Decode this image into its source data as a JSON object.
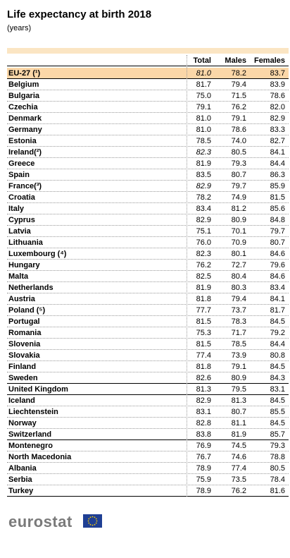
{
  "header": {
    "title": "Life expectancy at birth 2018",
    "subtitle": "(years)"
  },
  "table": {
    "columns": [
      "Total",
      "Males",
      "Females"
    ],
    "highlight": {
      "label": "EU-27 (¹)",
      "cells": [
        "81.0",
        "78.2",
        "83.7"
      ],
      "total_italic": true
    },
    "groups": [
      {
        "rows": [
          {
            "label": "Belgium",
            "cells": [
              "81.7",
              "79.4",
              "83.9"
            ]
          },
          {
            "label": "Bulgaria",
            "cells": [
              "75.0",
              "71.5",
              "78.6"
            ]
          },
          {
            "label": "Czechia",
            "cells": [
              "79.1",
              "76.2",
              "82.0"
            ]
          },
          {
            "label": "Denmark",
            "cells": [
              "81.0",
              "79.1",
              "82.9"
            ]
          },
          {
            "label": "Germany",
            "cells": [
              "81.0",
              "78.6",
              "83.3"
            ]
          },
          {
            "label": "Estonia",
            "cells": [
              "78.5",
              "74.0",
              "82.7"
            ]
          },
          {
            "label": "Ireland(²)",
            "cells": [
              "82.3",
              "80.5",
              "84.1"
            ],
            "total_italic": true
          },
          {
            "label": "Greece",
            "cells": [
              "81.9",
              "79.3",
              "84.4"
            ]
          },
          {
            "label": "Spain",
            "cells": [
              "83.5",
              "80.7",
              "86.3"
            ]
          },
          {
            "label": "France(³)",
            "cells": [
              "82.9",
              "79.7",
              "85.9"
            ],
            "total_italic": true
          },
          {
            "label": "Croatia",
            "cells": [
              "78.2",
              "74.9",
              "81.5"
            ]
          },
          {
            "label": "Italy",
            "cells": [
              "83.4",
              "81.2",
              "85.6"
            ]
          },
          {
            "label": "Cyprus",
            "cells": [
              "82.9",
              "80.9",
              "84.8"
            ]
          },
          {
            "label": "Latvia",
            "cells": [
              "75.1",
              "70.1",
              "79.7"
            ]
          },
          {
            "label": "Lithuania",
            "cells": [
              "76.0",
              "70.9",
              "80.7"
            ]
          },
          {
            "label": "Luxembourg (⁴)",
            "cells": [
              "82.3",
              "80.1",
              "84.6"
            ]
          },
          {
            "label": "Hungary",
            "cells": [
              "76.2",
              "72.7",
              "79.6"
            ]
          },
          {
            "label": "Malta",
            "cells": [
              "82.5",
              "80.4",
              "84.6"
            ]
          },
          {
            "label": "Netherlands",
            "cells": [
              "81.9",
              "80.3",
              "83.4"
            ]
          },
          {
            "label": "Austria",
            "cells": [
              "81.8",
              "79.4",
              "84.1"
            ]
          },
          {
            "label": "Poland (⁵)",
            "cells": [
              "77.7",
              "73.7",
              "81.7"
            ]
          },
          {
            "label": "Portugal",
            "cells": [
              "81.5",
              "78.3",
              "84.5"
            ]
          },
          {
            "label": "Romania",
            "cells": [
              "75.3",
              "71.7",
              "79.2"
            ]
          },
          {
            "label": "Slovenia",
            "cells": [
              "81.5",
              "78.5",
              "84.4"
            ]
          },
          {
            "label": "Slovakia",
            "cells": [
              "77.4",
              "73.9",
              "80.8"
            ]
          },
          {
            "label": "Finland",
            "cells": [
              "81.8",
              "79.1",
              "84.5"
            ]
          },
          {
            "label": "Sweden",
            "cells": [
              "82.6",
              "80.9",
              "84.3"
            ]
          }
        ]
      },
      {
        "rows": [
          {
            "label": "United Kingdom",
            "cells": [
              "81.3",
              "79.5",
              "83.1"
            ]
          }
        ]
      },
      {
        "rows": [
          {
            "label": "Iceland",
            "cells": [
              "82.9",
              "81.3",
              "84.5"
            ]
          },
          {
            "label": "Liechtenstein",
            "cells": [
              "83.1",
              "80.7",
              "85.5"
            ]
          },
          {
            "label": "Norway",
            "cells": [
              "82.8",
              "81.1",
              "84.5"
            ]
          },
          {
            "label": "Switzerland",
            "cells": [
              "83.8",
              "81.9",
              "85.7"
            ]
          }
        ]
      },
      {
        "rows": [
          {
            "label": "Montenegro",
            "cells": [
              "76.9",
              "74.5",
              "79.3"
            ]
          },
          {
            "label": "North Macedonia",
            "cells": [
              "76.7",
              "74.6",
              "78.8"
            ]
          },
          {
            "label": "Albania",
            "cells": [
              "78.9",
              "77.4",
              "80.5"
            ]
          },
          {
            "label": "Serbia",
            "cells": [
              "75.9",
              "73.5",
              "78.4"
            ]
          },
          {
            "label": "Turkey",
            "cells": [
              "78.9",
              "76.2",
              "81.6"
            ]
          }
        ]
      }
    ]
  },
  "footer": {
    "logo": "eurostat"
  }
}
